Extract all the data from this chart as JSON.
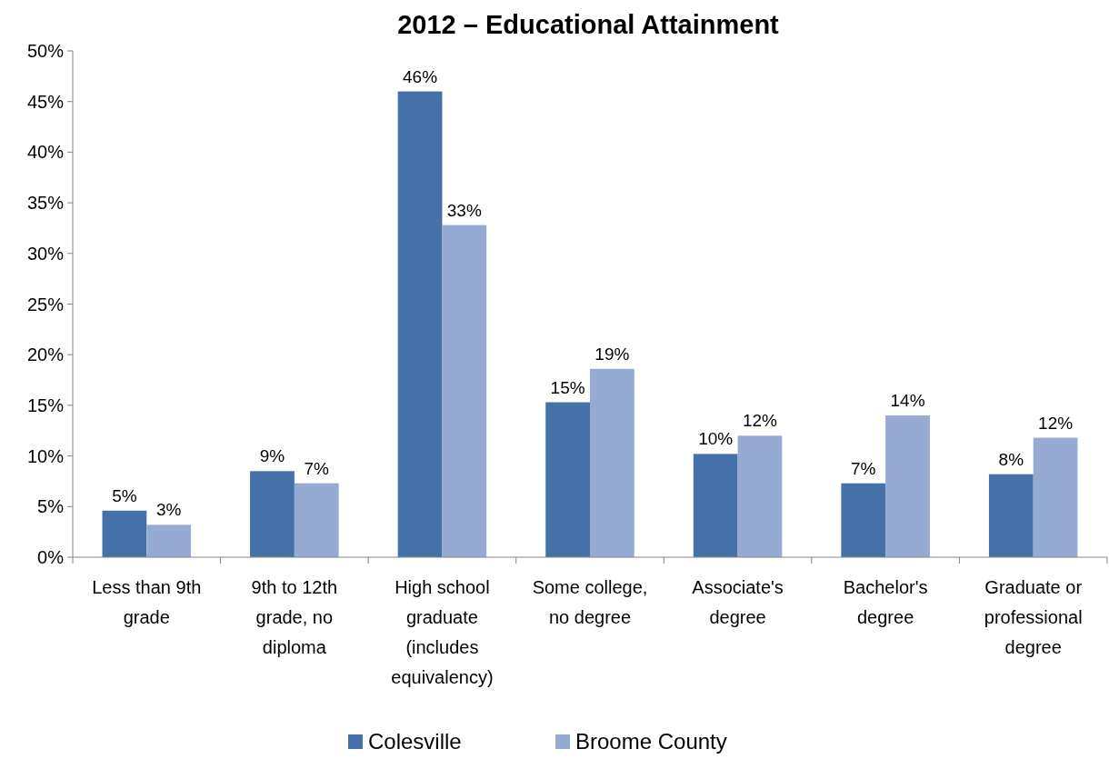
{
  "chart_data": {
    "type": "bar",
    "title": "2012 – Educational Attainment",
    "categories": [
      "Less than 9th grade",
      "9th to 12th grade, no diploma",
      "High school graduate (includes equivalency)",
      "Some college, no degree",
      "Associate's degree",
      "Bachelor's degree",
      "Graduate or professional degree"
    ],
    "series": [
      {
        "name": "Colesville",
        "color": "#4472a8",
        "values": [
          4.6,
          8.5,
          46,
          15.3,
          10.2,
          7.3,
          8.2
        ],
        "value_labels": [
          "5%",
          "9%",
          "46%",
          "15%",
          "10%",
          "7%",
          "8%"
        ]
      },
      {
        "name": "Broome County",
        "color": "#95abd3",
        "values": [
          3.2,
          7.3,
          32.8,
          18.6,
          12,
          14,
          11.8
        ],
        "value_labels": [
          "3%",
          "7%",
          "33%",
          "19%",
          "12%",
          "14%",
          "12%"
        ]
      }
    ],
    "ylim": [
      0,
      50
    ],
    "yticks": [
      {
        "value": 0,
        "label": "0%"
      },
      {
        "value": 5,
        "label": "5%"
      },
      {
        "value": 10,
        "label": "10%"
      },
      {
        "value": 15,
        "label": "15%"
      },
      {
        "value": 20,
        "label": "20%"
      },
      {
        "value": 25,
        "label": "25%"
      },
      {
        "value": 30,
        "label": "30%"
      },
      {
        "value": 35,
        "label": "35%"
      },
      {
        "value": 40,
        "label": "40%"
      },
      {
        "value": 45,
        "label": "45%"
      },
      {
        "value": 50,
        "label": "50%"
      }
    ],
    "grid": false,
    "legend": "bottom"
  }
}
